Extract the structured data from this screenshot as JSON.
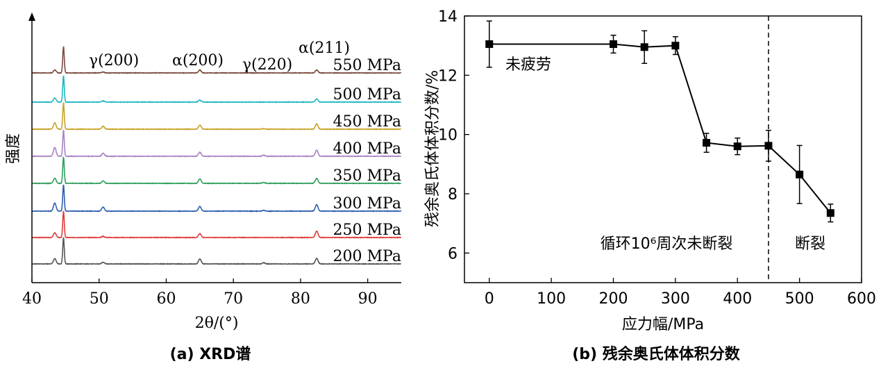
{
  "chart_data": [
    {
      "type": "line",
      "caption": "(a) XRD谱",
      "xlabel": "2θ/(°)",
      "ylabel": "强度",
      "xlim": [
        40,
        95
      ],
      "xticks": [
        40,
        50,
        60,
        70,
        80,
        90
      ],
      "peaks": [
        {
          "label": "γ(200)",
          "x": 50.6
        },
        {
          "label": "α(200)",
          "x": 65.0
        },
        {
          "label": "γ(220)",
          "x": 74.5
        },
        {
          "label": "α(211)",
          "x": 82.4
        }
      ],
      "series": [
        {
          "name": "550 MPa",
          "color": "#7a4a3e",
          "peaks": [
            [
              43.4,
              10
            ],
            [
              44.7,
              90
            ],
            [
              50.6,
              3
            ],
            [
              65.0,
              10
            ],
            [
              82.4,
              10
            ]
          ]
        },
        {
          "name": "500 MPa",
          "color": "#1fb5c2",
          "peaks": [
            [
              43.4,
              14
            ],
            [
              44.7,
              90
            ],
            [
              50.6,
              4
            ],
            [
              65.0,
              7
            ],
            [
              82.4,
              11
            ]
          ]
        },
        {
          "name": "450 MPa",
          "color": "#c9a227",
          "peaks": [
            [
              43.4,
              22
            ],
            [
              44.7,
              90
            ],
            [
              50.6,
              10
            ],
            [
              65.0,
              14
            ],
            [
              74.5,
              2
            ],
            [
              82.4,
              18
            ]
          ]
        },
        {
          "name": "400 MPa",
          "color": "#a883c4",
          "peaks": [
            [
              43.4,
              30
            ],
            [
              44.7,
              90
            ],
            [
              50.6,
              10
            ],
            [
              65.0,
              14
            ],
            [
              74.5,
              4
            ],
            [
              82.4,
              21
            ]
          ]
        },
        {
          "name": "350 MPa",
          "color": "#2e9e5b",
          "peaks": [
            [
              43.4,
              18
            ],
            [
              44.7,
              90
            ],
            [
              50.6,
              8
            ],
            [
              65.0,
              15
            ],
            [
              74.5,
              3
            ],
            [
              82.4,
              17
            ]
          ]
        },
        {
          "name": "300 MPa",
          "color": "#2e5fae",
          "peaks": [
            [
              43.4,
              28
            ],
            [
              44.7,
              90
            ],
            [
              50.6,
              14
            ],
            [
              65.0,
              16
            ],
            [
              74.5,
              3
            ],
            [
              82.4,
              22
            ]
          ]
        },
        {
          "name": "250 MPa",
          "color": "#e03b3b",
          "peaks": [
            [
              43.4,
              16
            ],
            [
              44.7,
              90
            ],
            [
              50.6,
              4
            ],
            [
              65.0,
              13
            ],
            [
              82.4,
              22
            ]
          ]
        },
        {
          "name": "200 MPa",
          "color": "#555555",
          "peaks": [
            [
              43.4,
              18
            ],
            [
              44.7,
              90
            ],
            [
              50.6,
              6
            ],
            [
              65.0,
              17
            ],
            [
              74.5,
              4
            ],
            [
              82.4,
              19
            ]
          ]
        }
      ]
    },
    {
      "type": "line",
      "caption": "(b) 残余奥氏体体积分数",
      "xlabel": "应力幅/MPa",
      "ylabel": "残余奥氏体体积分数/%",
      "xlim": [
        -40,
        600
      ],
      "ylim": [
        5,
        14
      ],
      "xticks": [
        0,
        100,
        200,
        300,
        400,
        500,
        600
      ],
      "yticks": [
        6,
        8,
        10,
        12,
        14
      ],
      "x": [
        0,
        200,
        250,
        300,
        350,
        400,
        450,
        500,
        550
      ],
      "y": [
        13.05,
        13.05,
        12.95,
        13.0,
        9.72,
        9.6,
        9.62,
        8.65,
        7.35
      ],
      "yerr": [
        0.78,
        0.3,
        0.55,
        0.3,
        0.32,
        0.28,
        0.52,
        0.98,
        0.3
      ],
      "threshold_x": 450,
      "annotations": {
        "unfatigued": "未疲劳",
        "no_fracture": "循环10⁶周次未断裂",
        "fracture": "断裂"
      }
    }
  ]
}
